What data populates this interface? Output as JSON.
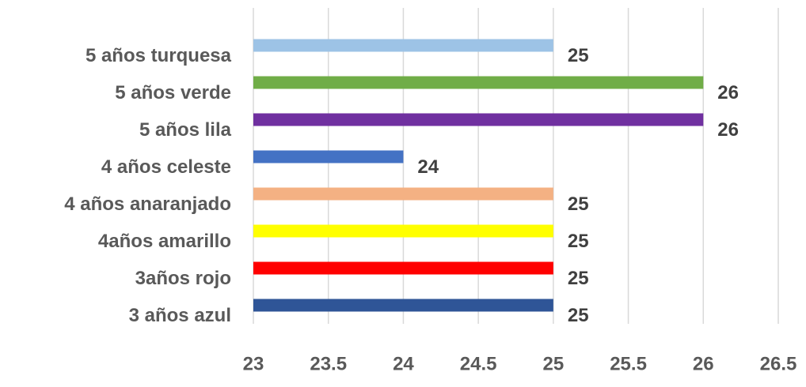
{
  "chart_data": {
    "type": "barh",
    "categories": [
      "5 años turquesa",
      "5 años verde",
      "5 años lila",
      "4 años celeste",
      "4 años anaranjado",
      "4años amarillo",
      "3años rojo",
      "3 años azul"
    ],
    "values": [
      25,
      26,
      26,
      24,
      25,
      25,
      25,
      25
    ],
    "colors": [
      "#9dc3e6",
      "#70ad47",
      "#7030a0",
      "#4472c4",
      "#f4b183",
      "#ffff00",
      "#ff0000",
      "#2f5597"
    ],
    "xlim": [
      23,
      26.5
    ],
    "xticks": [
      23,
      23.5,
      24,
      24.5,
      25,
      25.5,
      26,
      26.5
    ],
    "grid": true
  }
}
